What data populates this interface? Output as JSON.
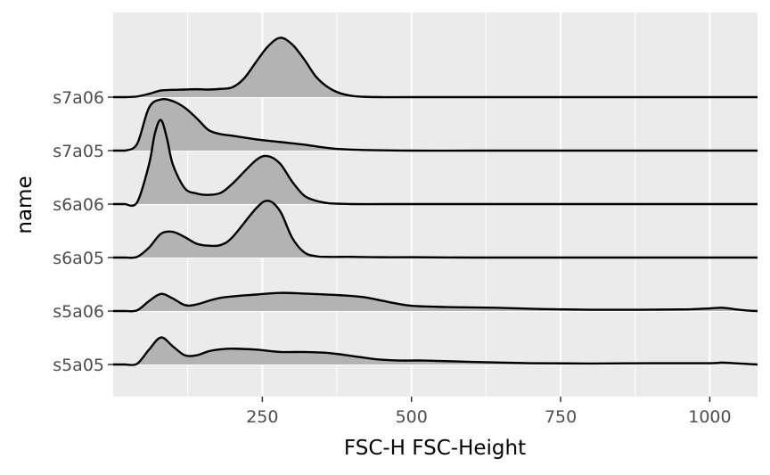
{
  "chart_data": {
    "type": "area",
    "subtype": "ridgeline",
    "title": "",
    "xlabel": "FSC-H FSC-Height",
    "ylabel": "name",
    "xlim": [
      0,
      1080
    ],
    "xticks": [
      250,
      500,
      750,
      1000
    ],
    "xtick_labels": [
      "250",
      "500",
      "750",
      "1000"
    ],
    "categories": [
      "s5a05",
      "s5a06",
      "s6a05",
      "s6a06",
      "s7a05",
      "s7a06"
    ],
    "grid": true,
    "background_color": "#ebebeb",
    "fill_color": "#b3b3b3",
    "line_color": "#000000",
    "series": [
      {
        "name": "s5a05",
        "x": [
          20,
          40,
          60,
          80,
          100,
          120,
          140,
          160,
          180,
          200,
          240,
          280,
          320,
          360,
          400,
          440,
          480,
          520,
          600,
          700,
          800,
          900,
          1000,
          1020,
          1040,
          1060,
          1080
        ],
        "y": [
          0,
          0.02,
          0.45,
          0.82,
          0.55,
          0.28,
          0.28,
          0.4,
          0.46,
          0.48,
          0.45,
          0.38,
          0.38,
          0.35,
          0.26,
          0.16,
          0.12,
          0.12,
          0.08,
          0.04,
          0.03,
          0.04,
          0.04,
          0.06,
          0.04,
          0.02,
          0
        ]
      },
      {
        "name": "s5a06",
        "x": [
          20,
          40,
          60,
          80,
          100,
          120,
          140,
          180,
          240,
          280,
          320,
          380,
          420,
          460,
          500,
          560,
          640,
          720,
          800,
          880,
          960,
          1000,
          1020,
          1040,
          1060,
          1080
        ],
        "y": [
          0,
          0.02,
          0.3,
          0.52,
          0.38,
          0.18,
          0.2,
          0.4,
          0.5,
          0.55,
          0.53,
          0.48,
          0.42,
          0.28,
          0.16,
          0.12,
          0.1,
          0.06,
          0.04,
          0.04,
          0.05,
          0.08,
          0.1,
          0.06,
          0.02,
          0
        ]
      },
      {
        "name": "s6a05",
        "x": [
          20,
          40,
          60,
          80,
          100,
          120,
          140,
          160,
          180,
          200,
          240,
          260,
          280,
          300,
          320,
          340,
          360,
          380,
          400,
          450,
          500,
          600,
          800,
          1080
        ],
        "y": [
          0,
          0.02,
          0.3,
          0.72,
          0.78,
          0.62,
          0.42,
          0.36,
          0.38,
          0.62,
          1.5,
          1.72,
          1.4,
          0.6,
          0.16,
          0.04,
          0.02,
          0.02,
          0.02,
          0.01,
          0.01,
          0,
          0,
          0
        ]
      },
      {
        "name": "s6a06",
        "x": [
          20,
          40,
          60,
          70,
          80,
          90,
          100,
          120,
          140,
          160,
          180,
          200,
          240,
          260,
          280,
          300,
          320,
          340,
          360,
          380,
          400,
          450,
          500,
          600,
          800,
          1080
        ],
        "y": [
          0,
          0.05,
          1.2,
          2.15,
          2.55,
          2.0,
          1.2,
          0.48,
          0.32,
          0.28,
          0.34,
          0.62,
          1.34,
          1.45,
          1.22,
          0.68,
          0.26,
          0.1,
          0.03,
          0.01,
          0,
          0,
          0,
          0,
          0,
          0
        ]
      },
      {
        "name": "s7a05",
        "x": [
          20,
          40,
          60,
          80,
          100,
          120,
          140,
          160,
          180,
          200,
          240,
          280,
          320,
          360,
          400,
          500,
          600,
          800,
          1080
        ],
        "y": [
          0,
          0.2,
          1.3,
          1.55,
          1.5,
          1.3,
          0.98,
          0.62,
          0.5,
          0.45,
          0.34,
          0.26,
          0.18,
          0.08,
          0.03,
          0,
          0,
          0,
          0
        ]
      },
      {
        "name": "s7a06",
        "x": [
          20,
          40,
          60,
          80,
          100,
          120,
          140,
          160,
          180,
          200,
          220,
          240,
          260,
          280,
          300,
          320,
          340,
          360,
          380,
          400,
          420,
          450,
          500,
          600,
          800,
          1080
        ],
        "y": [
          0,
          0.02,
          0.1,
          0.2,
          0.22,
          0.23,
          0.24,
          0.23,
          0.25,
          0.3,
          0.58,
          1.08,
          1.55,
          1.8,
          1.6,
          1.15,
          0.62,
          0.3,
          0.12,
          0.04,
          0.01,
          0,
          0,
          0,
          0,
          0
        ]
      }
    ]
  }
}
